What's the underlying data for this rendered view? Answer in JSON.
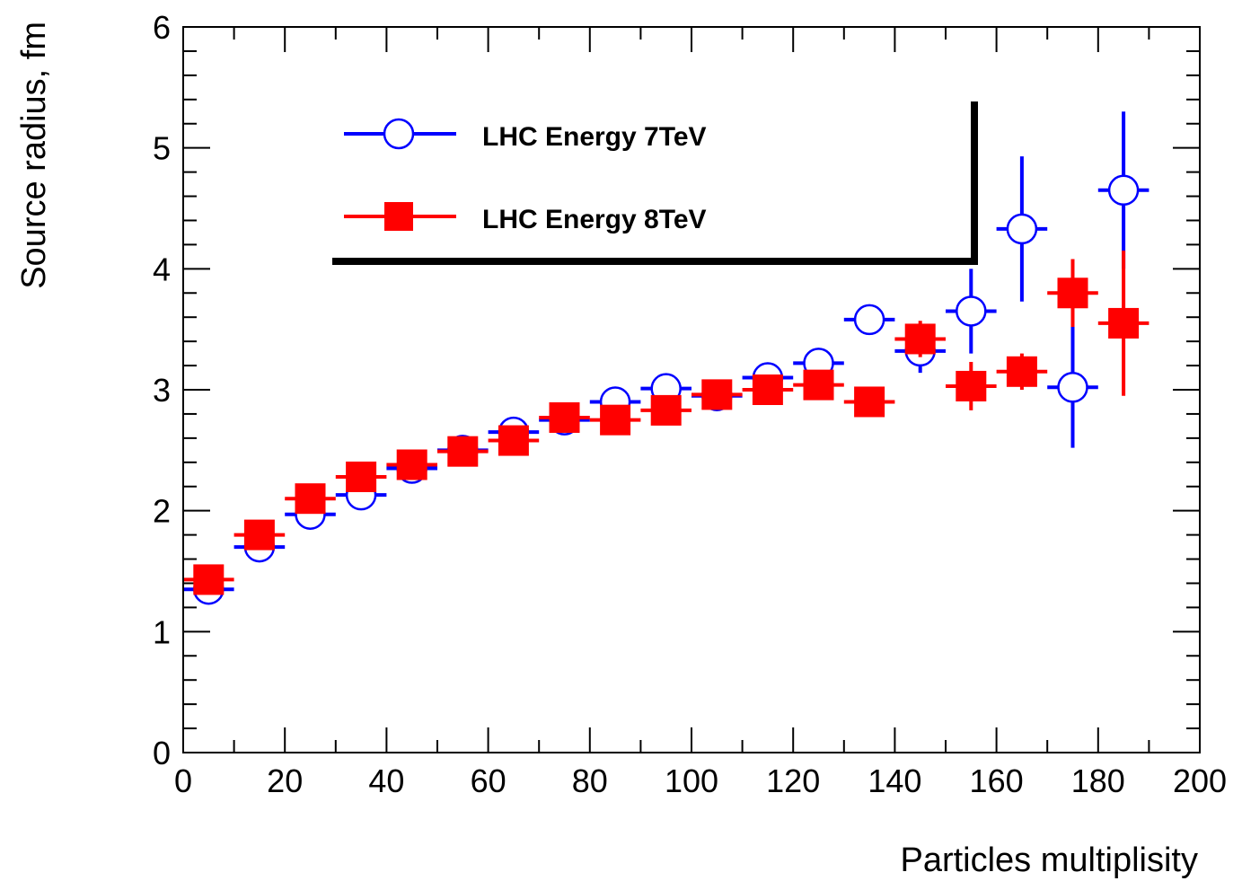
{
  "chart_data": {
    "type": "scatter",
    "xlabel": "Particles multiplisity",
    "ylabel": "Source radius, fm",
    "xlim": [
      0,
      200
    ],
    "ylim": [
      0,
      6
    ],
    "xticks": [
      "0",
      "20",
      "40",
      "60",
      "80",
      "100",
      "120",
      "140",
      "160",
      "180",
      "200"
    ],
    "yticks": [
      "0",
      "1",
      "2",
      "3",
      "4",
      "5",
      "6"
    ],
    "grid": false,
    "legend_position": "top-left",
    "series": [
      {
        "name": "LHC Energy 7TeV",
        "color": "#0000ff",
        "marker": "open-circle",
        "x": [
          5,
          15,
          25,
          35,
          45,
          55,
          65,
          75,
          85,
          95,
          105,
          115,
          125,
          135,
          145,
          155,
          165,
          175,
          185
        ],
        "y": [
          1.35,
          1.7,
          1.97,
          2.13,
          2.35,
          2.5,
          2.65,
          2.75,
          2.9,
          3.01,
          2.95,
          3.1,
          3.22,
          3.58,
          3.32,
          3.65,
          4.33,
          3.02,
          4.65
        ],
        "yerr": [
          0.03,
          0.03,
          0.03,
          0.03,
          0.03,
          0.03,
          0.03,
          0.03,
          0.03,
          0.04,
          0.04,
          0.05,
          0.05,
          0.1,
          0.18,
          0.35,
          0.6,
          0.5,
          0.65
        ]
      },
      {
        "name": "LHC Energy 8TeV",
        "color": "#ff0000",
        "marker": "filled-square",
        "x": [
          5,
          15,
          25,
          35,
          45,
          55,
          65,
          75,
          85,
          95,
          105,
          115,
          125,
          135,
          145,
          155,
          165,
          175,
          185
        ],
        "y": [
          1.43,
          1.8,
          2.1,
          2.28,
          2.38,
          2.49,
          2.58,
          2.77,
          2.75,
          2.83,
          2.96,
          3.0,
          3.04,
          2.9,
          3.42,
          3.03,
          3.15,
          3.8,
          3.55
        ],
        "yerr": [
          0.03,
          0.03,
          0.03,
          0.03,
          0.03,
          0.03,
          0.03,
          0.03,
          0.03,
          0.04,
          0.04,
          0.05,
          0.05,
          0.05,
          0.15,
          0.2,
          0.15,
          0.28,
          0.6
        ]
      }
    ]
  }
}
